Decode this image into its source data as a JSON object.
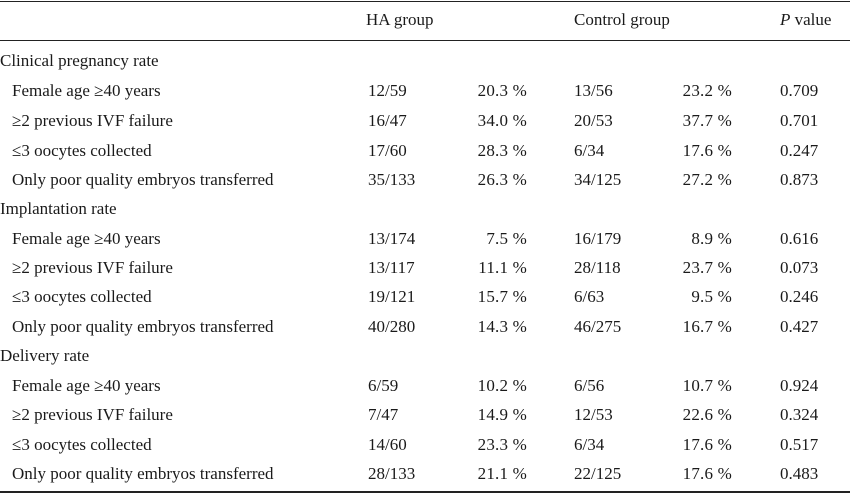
{
  "header": {
    "ha_group": "HA group",
    "control_group": "Control group",
    "p_italic": "P",
    "p_rest": " value"
  },
  "sections": [
    {
      "title": "Clinical pregnancy rate",
      "rows": [
        {
          "label": "Female age ≥40 years",
          "ha_n": "12/59",
          "ha_pct": "20.3 %",
          "ctrl_n": "13/56",
          "ctrl_pct": "23.2 %",
          "p": "0.709"
        },
        {
          "label": "≥2 previous IVF failure",
          "ha_n": "16/47",
          "ha_pct": "34.0 %",
          "ctrl_n": "20/53",
          "ctrl_pct": "37.7 %",
          "p": "0.701"
        },
        {
          "label": "≤3 oocytes collected",
          "ha_n": "17/60",
          "ha_pct": "28.3 %",
          "ctrl_n": "6/34",
          "ctrl_pct": "17.6 %",
          "p": "0.247"
        },
        {
          "label": "Only poor quality embryos transferred",
          "ha_n": "35/133",
          "ha_pct": "26.3 %",
          "ctrl_n": "34/125",
          "ctrl_pct": "27.2 %",
          "p": "0.873"
        }
      ]
    },
    {
      "title": "Implantation rate",
      "rows": [
        {
          "label": "Female age ≥40 years",
          "ha_n": "13/174",
          "ha_pct": "7.5 %",
          "ctrl_n": "16/179",
          "ctrl_pct": "8.9 %",
          "p": "0.616"
        },
        {
          "label": "≥2 previous IVF failure",
          "ha_n": "13/117",
          "ha_pct": "11.1 %",
          "ctrl_n": "28/118",
          "ctrl_pct": "23.7 %",
          "p": "0.073"
        },
        {
          "label": "≤3 oocytes collected",
          "ha_n": "19/121",
          "ha_pct": "15.7 %",
          "ctrl_n": "6/63",
          "ctrl_pct": "9.5 %",
          "p": "0.246"
        },
        {
          "label": "Only poor quality embryos transferred",
          "ha_n": "40/280",
          "ha_pct": "14.3 %",
          "ctrl_n": "46/275",
          "ctrl_pct": "16.7 %",
          "p": "0.427"
        }
      ]
    },
    {
      "title": "Delivery rate",
      "rows": [
        {
          "label": "Female age ≥40 years",
          "ha_n": "6/59",
          "ha_pct": "10.2 %",
          "ctrl_n": "6/56",
          "ctrl_pct": "10.7 %",
          "p": "0.924"
        },
        {
          "label": "≥2 previous IVF failure",
          "ha_n": "7/47",
          "ha_pct": "14.9 %",
          "ctrl_n": "12/53",
          "ctrl_pct": "22.6 %",
          "p": "0.324"
        },
        {
          "label": "≤3 oocytes collected",
          "ha_n": "14/60",
          "ha_pct": "23.3 %",
          "ctrl_n": "6/34",
          "ctrl_pct": "17.6 %",
          "p": "0.517"
        },
        {
          "label": "Only poor quality embryos transferred",
          "ha_n": "28/133",
          "ha_pct": "21.1 %",
          "ctrl_n": "22/125",
          "ctrl_pct": "17.6 %",
          "p": "0.483"
        }
      ]
    }
  ]
}
